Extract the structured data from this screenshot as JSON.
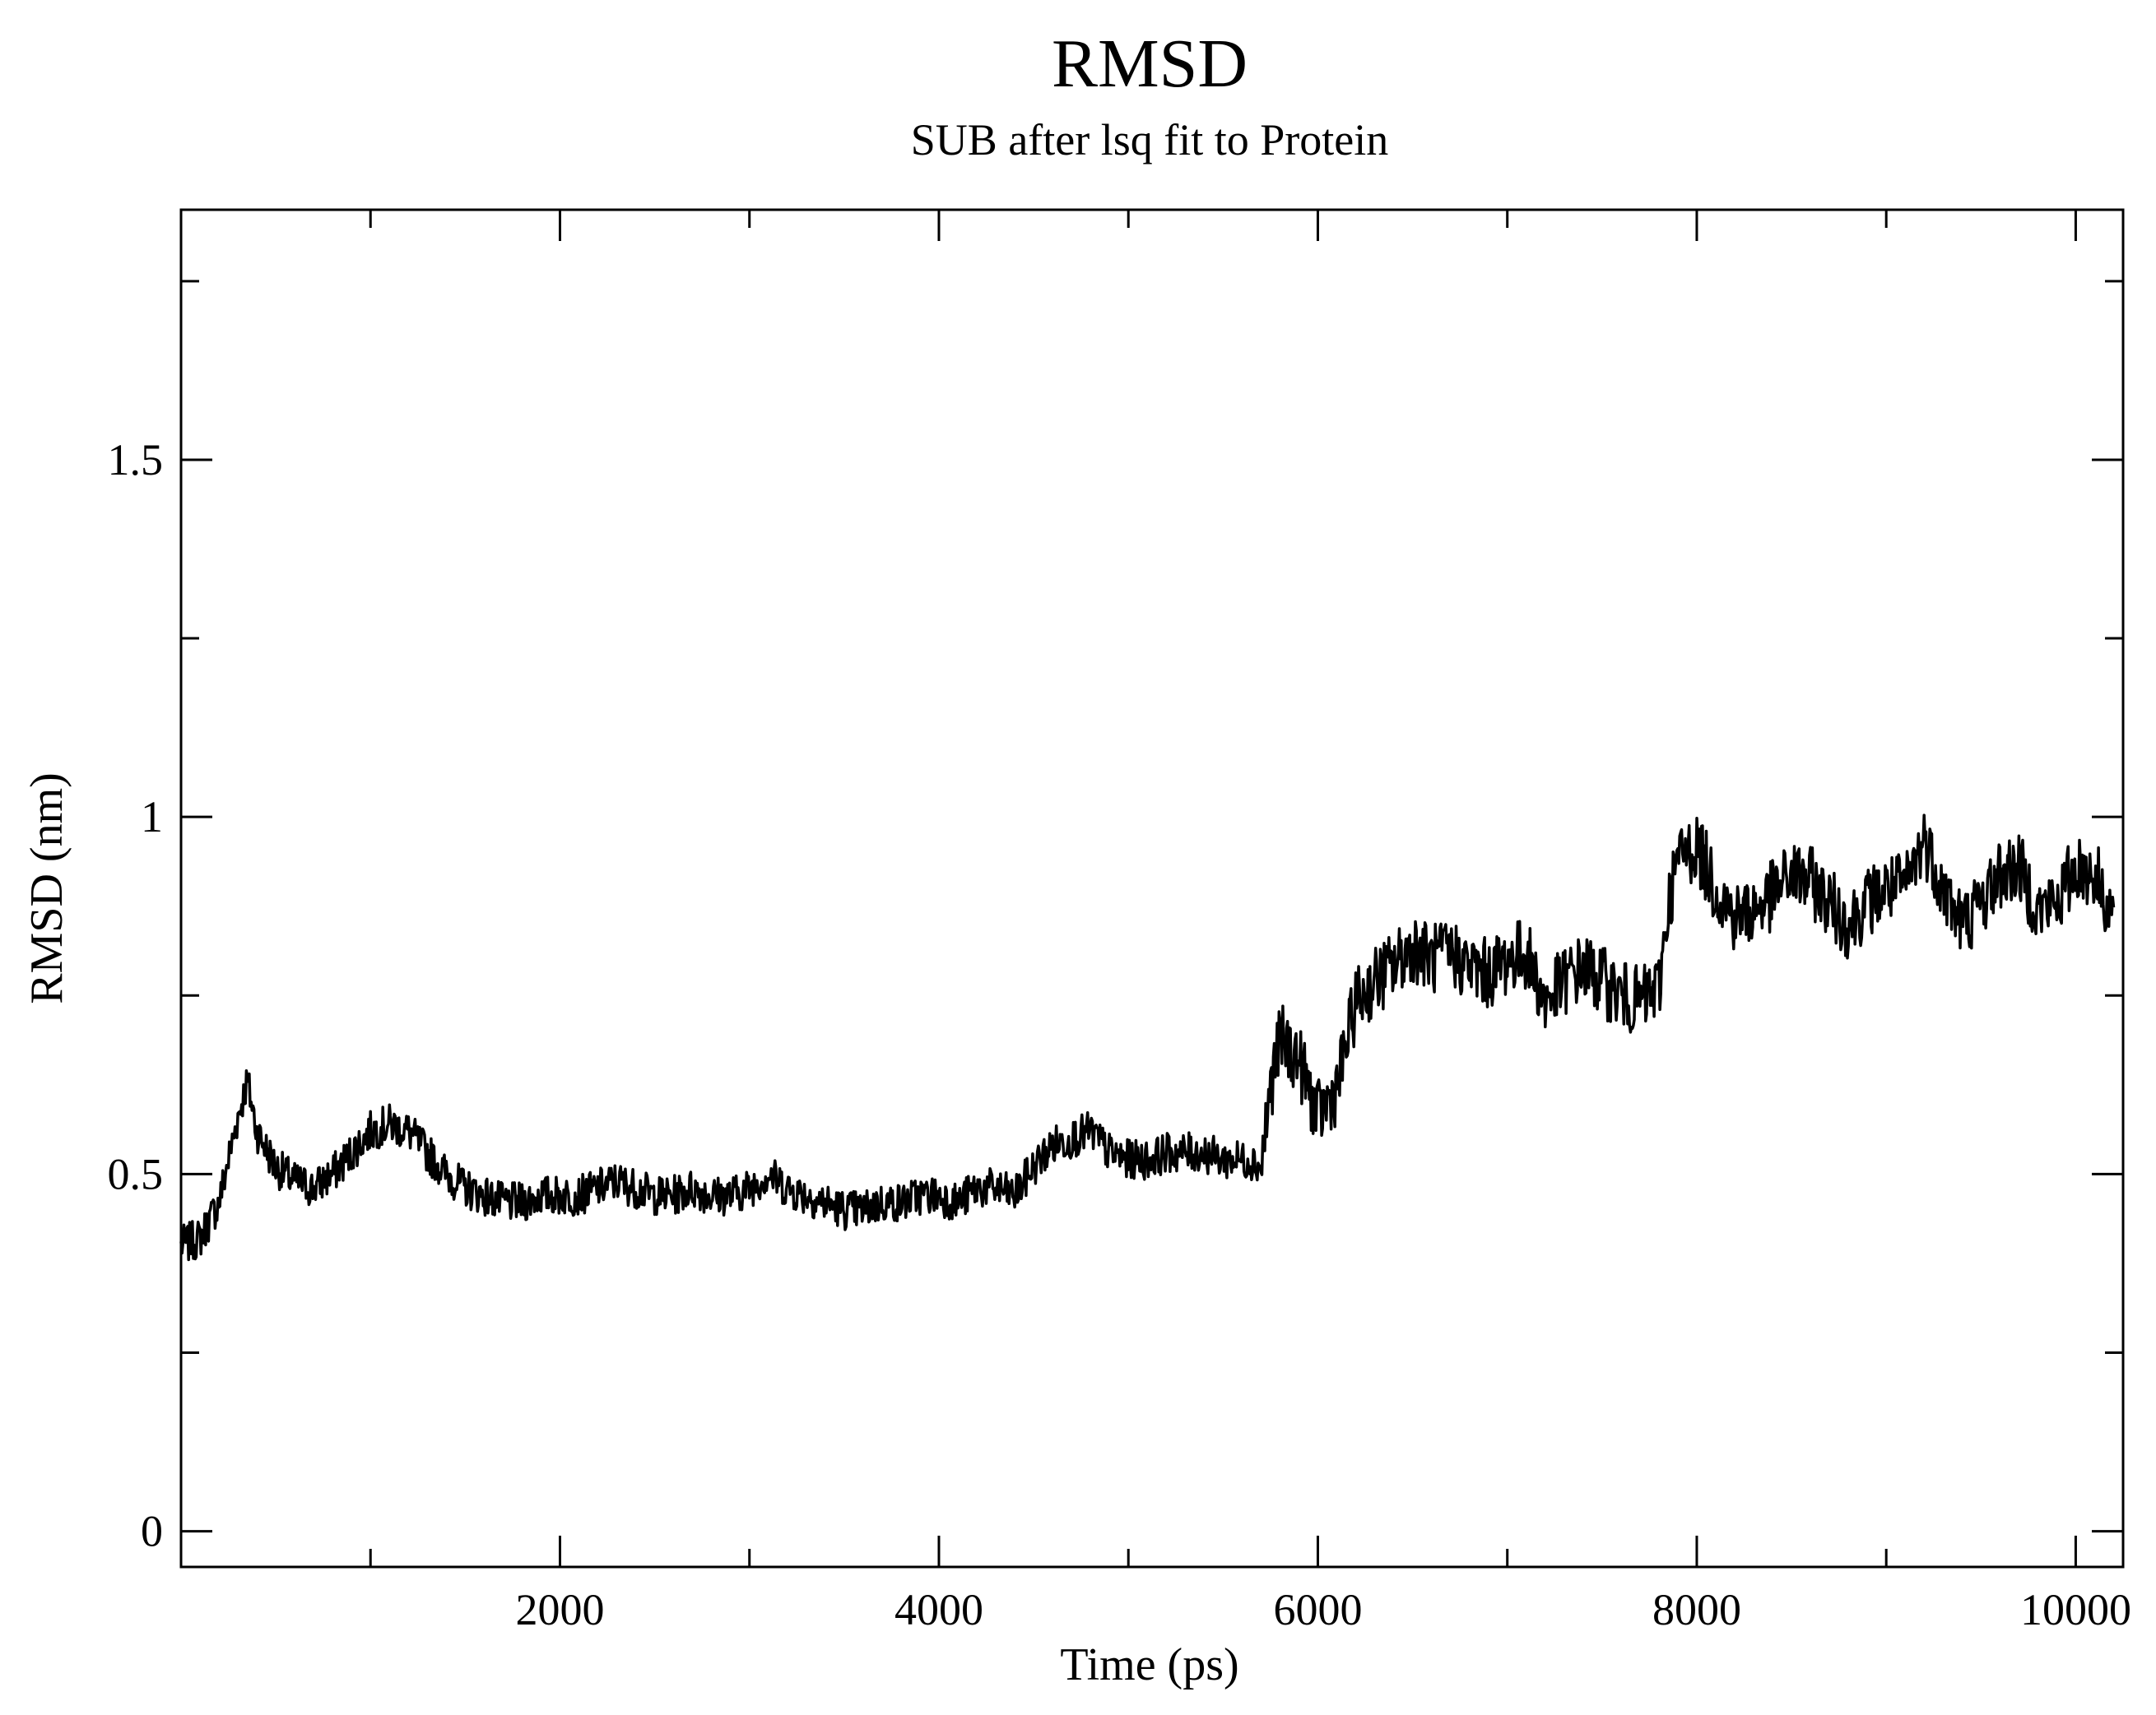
{
  "chart_data": {
    "type": "line",
    "title": "RMSD",
    "subtitle": "SUB after lsq fit to Protein",
    "xlabel": "Time (ps)",
    "ylabel": "RMSD (nm)",
    "xlim": [
      0,
      10250
    ],
    "ylim": [
      -0.05,
      1.85
    ],
    "x_ticks": [
      2000,
      4000,
      6000,
      8000,
      10000
    ],
    "x_tick_labels": [
      "2000",
      "4000",
      "6000",
      "8000",
      "10000"
    ],
    "x_minor_ticks": [
      1000,
      3000,
      5000,
      7000,
      9000
    ],
    "y_ticks": [
      0,
      0.5,
      1,
      1.5
    ],
    "y_tick_labels": [
      "0",
      "0.5",
      "1",
      "1.5"
    ],
    "y_minor_ticks": [
      0.25,
      0.75,
      1.25,
      1.75
    ],
    "grid": false,
    "line_color": "#000000",
    "series": [
      {
        "x": [
          0,
          100,
          200,
          300,
          350,
          400,
          500,
          600,
          700,
          800,
          900,
          1000,
          1100,
          1200,
          1300,
          1400,
          1500,
          1600,
          1700,
          1800,
          1900,
          2000,
          2100,
          2200,
          2300,
          2400,
          2500,
          2600,
          2700,
          2800,
          2900,
          3000,
          3100,
          3200,
          3300,
          3400,
          3500,
          3600,
          3700,
          3800,
          3900,
          4000,
          4100,
          4200,
          4300,
          4400,
          4500,
          4600,
          4700,
          4800,
          4900,
          5000,
          5100,
          5200,
          5300,
          5400,
          5500,
          5600,
          5650,
          5700,
          5750,
          5800,
          5900,
          6000,
          6050,
          6100,
          6150,
          6200,
          6300,
          6400,
          6500,
          6600,
          6700,
          6800,
          6900,
          7000,
          7100,
          7200,
          7300,
          7400,
          7500,
          7600,
          7700,
          7750,
          7800,
          7850,
          7900,
          8000,
          8100,
          8200,
          8300,
          8400,
          8500,
          8600,
          8700,
          8800,
          8900,
          9000,
          9100,
          9200,
          9300,
          9400,
          9500,
          9600,
          9700,
          9800,
          9900,
          10000,
          10100,
          10200
        ],
        "y": [
          0.4,
          0.41,
          0.46,
          0.58,
          0.63,
          0.56,
          0.51,
          0.49,
          0.48,
          0.5,
          0.53,
          0.56,
          0.57,
          0.56,
          0.53,
          0.5,
          0.48,
          0.47,
          0.46,
          0.46,
          0.47,
          0.47,
          0.47,
          0.48,
          0.49,
          0.48,
          0.47,
          0.47,
          0.48,
          0.47,
          0.47,
          0.48,
          0.5,
          0.48,
          0.47,
          0.46,
          0.45,
          0.45,
          0.46,
          0.46,
          0.47,
          0.47,
          0.46,
          0.48,
          0.48,
          0.47,
          0.51,
          0.54,
          0.55,
          0.56,
          0.53,
          0.52,
          0.52,
          0.53,
          0.53,
          0.53,
          0.52,
          0.52,
          0.52,
          0.51,
          0.62,
          0.69,
          0.66,
          0.58,
          0.6,
          0.62,
          0.68,
          0.74,
          0.77,
          0.79,
          0.82,
          0.8,
          0.81,
          0.79,
          0.78,
          0.8,
          0.81,
          0.74,
          0.77,
          0.79,
          0.77,
          0.75,
          0.74,
          0.75,
          0.76,
          0.88,
          0.94,
          0.96,
          0.9,
          0.86,
          0.87,
          0.89,
          0.92,
          0.91,
          0.88,
          0.85,
          0.88,
          0.9,
          0.9,
          0.97,
          0.9,
          0.85,
          0.88,
          0.92,
          0.93,
          0.87,
          0.88,
          0.93,
          0.92,
          0.86
        ]
      }
    ]
  }
}
